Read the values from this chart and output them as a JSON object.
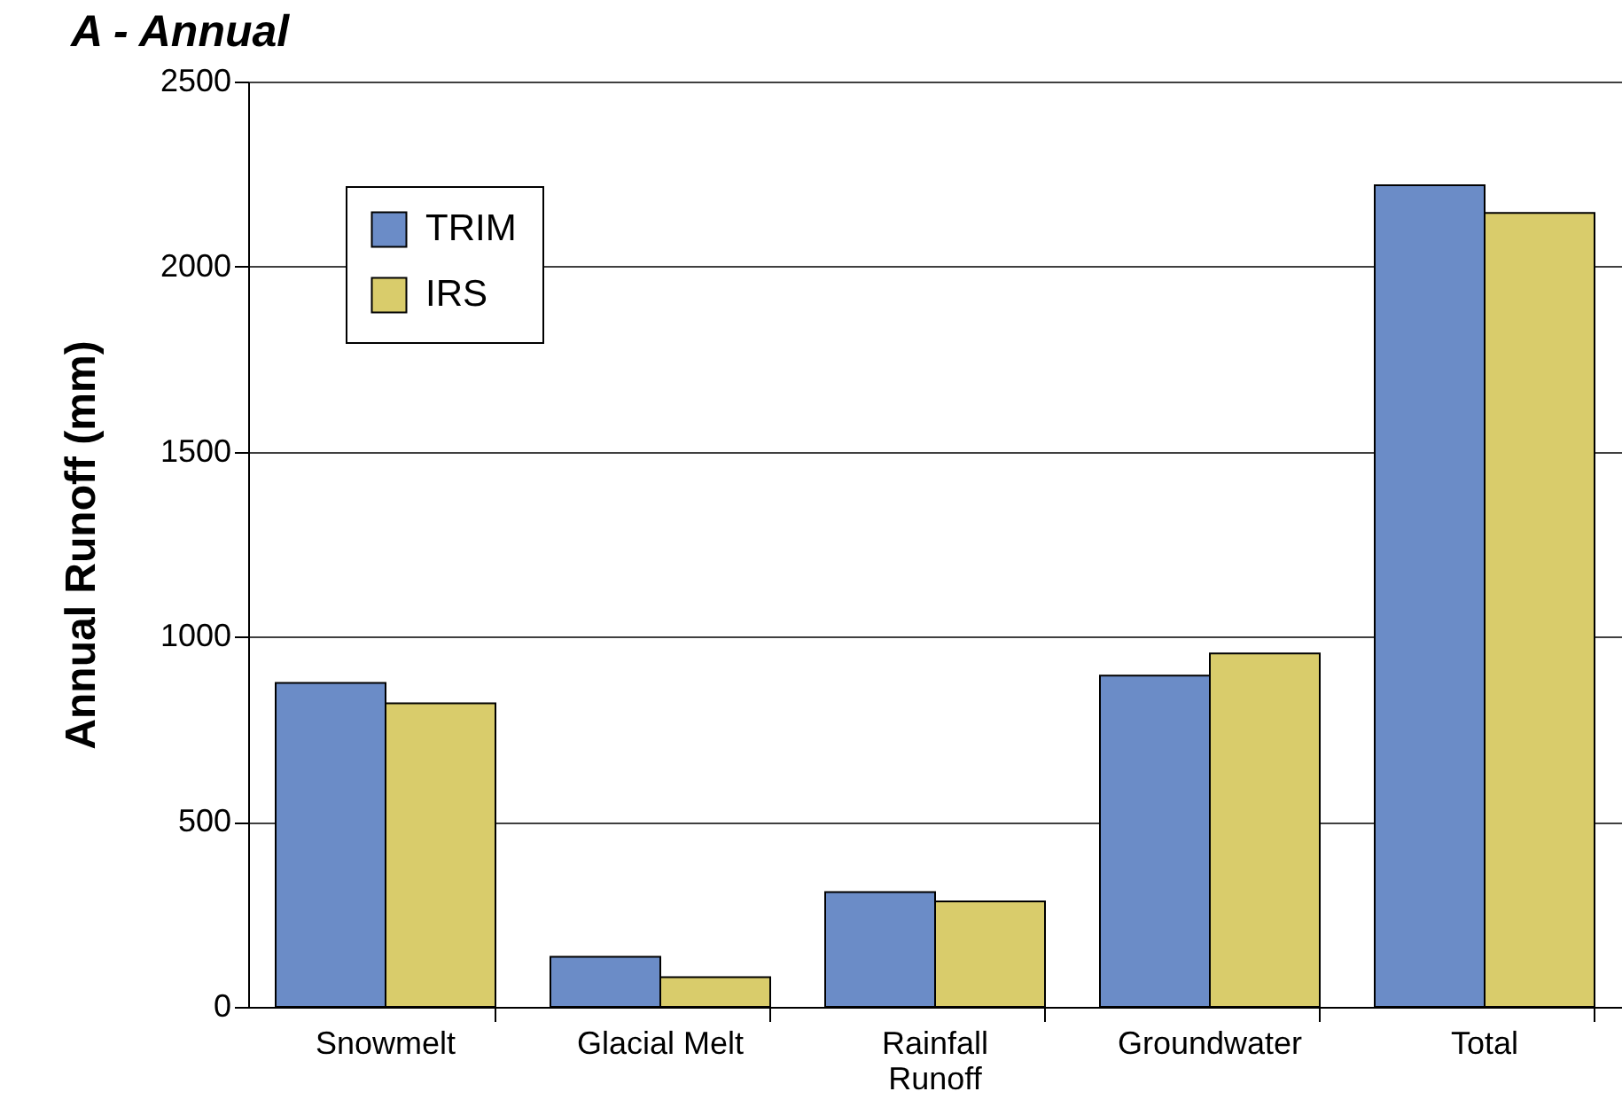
{
  "chart_data": {
    "type": "bar",
    "title": "A - Annual",
    "ylabel": "Annual Runoff (mm)",
    "categories": [
      "Snowmelt",
      "Glacial Melt",
      "Rainfall Runoff",
      "Groundwater",
      "Total"
    ],
    "series": [
      {
        "name": "TRIM",
        "color": "#6b8cc7",
        "values": [
          875,
          135,
          310,
          895,
          2220
        ]
      },
      {
        "name": "IRS",
        "color": "#d9cc6b",
        "values": [
          820,
          80,
          285,
          955,
          2145
        ]
      }
    ],
    "ylim": [
      0,
      2500
    ],
    "yticks": [
      0,
      500,
      1000,
      1500,
      2000,
      2500
    ],
    "grid": "y",
    "legend": "top left"
  }
}
